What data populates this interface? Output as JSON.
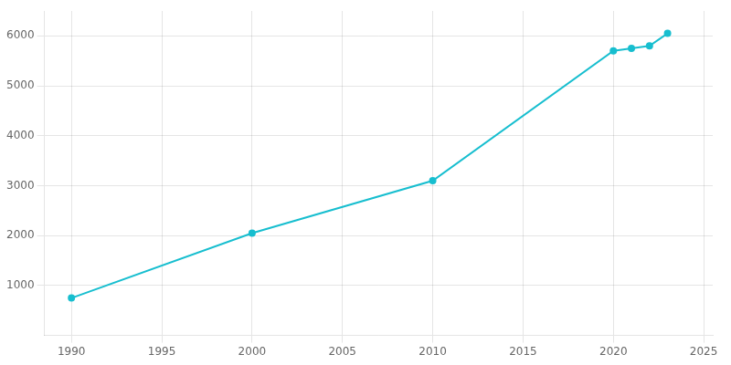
{
  "chart_data": {
    "type": "line",
    "x": [
      1990,
      2000,
      2010,
      2020,
      2021,
      2022,
      2023
    ],
    "values": [
      750,
      2050,
      3100,
      5700,
      5750,
      5800,
      6050
    ],
    "color": "#17becf",
    "marker": "circle",
    "xlim": [
      1988.5,
      2025.5
    ],
    "xticks": [
      1990,
      1995,
      2000,
      2005,
      2010,
      2015,
      2020,
      2025
    ],
    "ylim": [
      0,
      6500
    ],
    "yticks": [
      1000,
      2000,
      3000,
      4000,
      5000,
      6000
    ],
    "grid": true
  }
}
